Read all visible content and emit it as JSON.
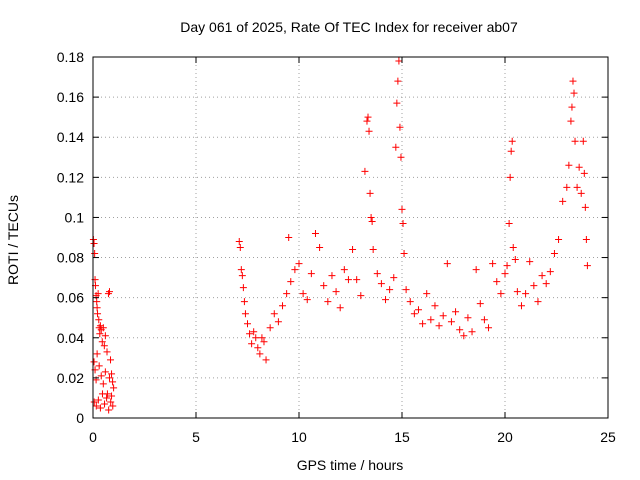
{
  "chart_data": {
    "type": "scatter",
    "title": "Day 061 of 2025, Rate Of TEC Index for receiver ab07",
    "xlabel": "GPS time / hours",
    "ylabel": "ROTI / TECUs",
    "xlim": [
      0,
      25
    ],
    "ylim": [
      0,
      0.18
    ],
    "x_ticks": [
      0,
      5,
      10,
      15,
      20,
      25
    ],
    "y_ticks": [
      0,
      0.02,
      0.04,
      0.06,
      0.08,
      0.1,
      0.12,
      0.14,
      0.16,
      0.18
    ],
    "x_tick_labels": [
      "0",
      "5",
      "10",
      "15",
      "20",
      "25"
    ],
    "y_tick_labels": [
      "0",
      "0.02",
      "0.04",
      "0.06",
      "0.08",
      "0.1",
      "0.12",
      "0.14",
      "0.16",
      "0.18"
    ],
    "grid": true,
    "marker": "+",
    "color": "#ff0000",
    "series": [
      {
        "points": [
          [
            0.02,
            0.089
          ],
          [
            0.05,
            0.087
          ],
          [
            0.08,
            0.082
          ],
          [
            0.1,
            0.069
          ],
          [
            0.12,
            0.066
          ],
          [
            0.15,
            0.061
          ],
          [
            0.18,
            0.058
          ],
          [
            0.2,
            0.055
          ],
          [
            0.22,
            0.052
          ],
          [
            0.25,
            0.062
          ],
          [
            0.28,
            0.049
          ],
          [
            0.3,
            0.045
          ],
          [
            0.33,
            0.042
          ],
          [
            0.36,
            0.046
          ],
          [
            0.4,
            0.044
          ],
          [
            0.45,
            0.038
          ],
          [
            0.5,
            0.045
          ],
          [
            0.55,
            0.036
          ],
          [
            0.6,
            0.041
          ],
          [
            0.68,
            0.033
          ],
          [
            0.75,
            0.062
          ],
          [
            0.8,
            0.063
          ],
          [
            0.85,
            0.029
          ],
          [
            0.9,
            0.022
          ],
          [
            0.95,
            0.018
          ],
          [
            1.0,
            0.015
          ],
          [
            0.05,
            0.028
          ],
          [
            0.1,
            0.024
          ],
          [
            0.15,
            0.019
          ],
          [
            0.2,
            0.032
          ],
          [
            0.3,
            0.026
          ],
          [
            0.4,
            0.021
          ],
          [
            0.5,
            0.017
          ],
          [
            0.6,
            0.023
          ],
          [
            0.7,
            0.012
          ],
          [
            0.8,
            0.02
          ],
          [
            0.9,
            0.011
          ],
          [
            0.06,
            0.008
          ],
          [
            0.16,
            0.006
          ],
          [
            0.26,
            0.009
          ],
          [
            0.36,
            0.005
          ],
          [
            0.46,
            0.012
          ],
          [
            0.56,
            0.007
          ],
          [
            0.66,
            0.01
          ],
          [
            0.76,
            0.004
          ],
          [
            0.86,
            0.008
          ],
          [
            0.96,
            0.006
          ],
          [
            7.1,
            0.088
          ],
          [
            7.15,
            0.085
          ],
          [
            7.2,
            0.074
          ],
          [
            7.25,
            0.071
          ],
          [
            7.3,
            0.065
          ],
          [
            7.35,
            0.058
          ],
          [
            7.4,
            0.052
          ],
          [
            7.5,
            0.047
          ],
          [
            7.6,
            0.042
          ],
          [
            7.7,
            0.037
          ],
          [
            7.8,
            0.043
          ],
          [
            7.9,
            0.04
          ],
          [
            8.0,
            0.035
          ],
          [
            8.1,
            0.032
          ],
          [
            8.2,
            0.04
          ],
          [
            8.3,
            0.038
          ],
          [
            8.4,
            0.029
          ],
          [
            8.6,
            0.045
          ],
          [
            8.8,
            0.052
          ],
          [
            9.0,
            0.048
          ],
          [
            9.2,
            0.056
          ],
          [
            9.4,
            0.062
          ],
          [
            9.5,
            0.09
          ],
          [
            9.6,
            0.068
          ],
          [
            9.8,
            0.074
          ],
          [
            10.0,
            0.077
          ],
          [
            10.2,
            0.062
          ],
          [
            10.4,
            0.059
          ],
          [
            10.6,
            0.072
          ],
          [
            10.8,
            0.092
          ],
          [
            11.0,
            0.085
          ],
          [
            11.2,
            0.066
          ],
          [
            11.4,
            0.058
          ],
          [
            11.6,
            0.071
          ],
          [
            11.8,
            0.063
          ],
          [
            12.0,
            0.055
          ],
          [
            12.2,
            0.074
          ],
          [
            12.4,
            0.069
          ],
          [
            12.6,
            0.084
          ],
          [
            12.8,
            0.069
          ],
          [
            13.0,
            0.061
          ],
          [
            13.2,
            0.123
          ],
          [
            13.3,
            0.148
          ],
          [
            13.35,
            0.15
          ],
          [
            13.4,
            0.143
          ],
          [
            13.45,
            0.112
          ],
          [
            13.5,
            0.1
          ],
          [
            13.55,
            0.098
          ],
          [
            13.6,
            0.084
          ],
          [
            13.8,
            0.072
          ],
          [
            14.0,
            0.067
          ],
          [
            14.2,
            0.059
          ],
          [
            14.4,
            0.064
          ],
          [
            14.6,
            0.07
          ],
          [
            14.7,
            0.135
          ],
          [
            14.75,
            0.157
          ],
          [
            14.8,
            0.168
          ],
          [
            14.85,
            0.178
          ],
          [
            14.9,
            0.145
          ],
          [
            14.95,
            0.13
          ],
          [
            15.0,
            0.104
          ],
          [
            15.05,
            0.097
          ],
          [
            15.1,
            0.082
          ],
          [
            15.2,
            0.064
          ],
          [
            15.4,
            0.058
          ],
          [
            15.6,
            0.052
          ],
          [
            15.8,
            0.054
          ],
          [
            16.0,
            0.047
          ],
          [
            16.2,
            0.062
          ],
          [
            16.4,
            0.049
          ],
          [
            16.6,
            0.056
          ],
          [
            16.8,
            0.046
          ],
          [
            17.0,
            0.051
          ],
          [
            17.2,
            0.077
          ],
          [
            17.4,
            0.048
          ],
          [
            17.6,
            0.053
          ],
          [
            17.8,
            0.044
          ],
          [
            18.0,
            0.041
          ],
          [
            18.2,
            0.05
          ],
          [
            18.4,
            0.043
          ],
          [
            18.6,
            0.074
          ],
          [
            18.8,
            0.057
          ],
          [
            19.0,
            0.049
          ],
          [
            19.2,
            0.045
          ],
          [
            19.4,
            0.077
          ],
          [
            19.6,
            0.068
          ],
          [
            19.8,
            0.062
          ],
          [
            20.0,
            0.072
          ],
          [
            20.1,
            0.076
          ],
          [
            20.2,
            0.097
          ],
          [
            20.25,
            0.12
          ],
          [
            20.3,
            0.133
          ],
          [
            20.35,
            0.138
          ],
          [
            20.4,
            0.085
          ],
          [
            20.5,
            0.079
          ],
          [
            20.6,
            0.063
          ],
          [
            20.8,
            0.056
          ],
          [
            21.0,
            0.062
          ],
          [
            21.2,
            0.078
          ],
          [
            21.4,
            0.066
          ],
          [
            21.6,
            0.058
          ],
          [
            21.8,
            0.071
          ],
          [
            22.0,
            0.067
          ],
          [
            22.2,
            0.073
          ],
          [
            22.4,
            0.082
          ],
          [
            22.6,
            0.089
          ],
          [
            22.8,
            0.108
          ],
          [
            23.0,
            0.115
          ],
          [
            23.1,
            0.126
          ],
          [
            23.2,
            0.148
          ],
          [
            23.25,
            0.155
          ],
          [
            23.3,
            0.168
          ],
          [
            23.35,
            0.162
          ],
          [
            23.4,
            0.138
          ],
          [
            23.5,
            0.115
          ],
          [
            23.6,
            0.125
          ],
          [
            23.7,
            0.112
          ],
          [
            23.8,
            0.138
          ],
          [
            23.85,
            0.122
          ],
          [
            23.9,
            0.105
          ],
          [
            23.95,
            0.089
          ],
          [
            24.0,
            0.076
          ]
        ]
      }
    ]
  }
}
